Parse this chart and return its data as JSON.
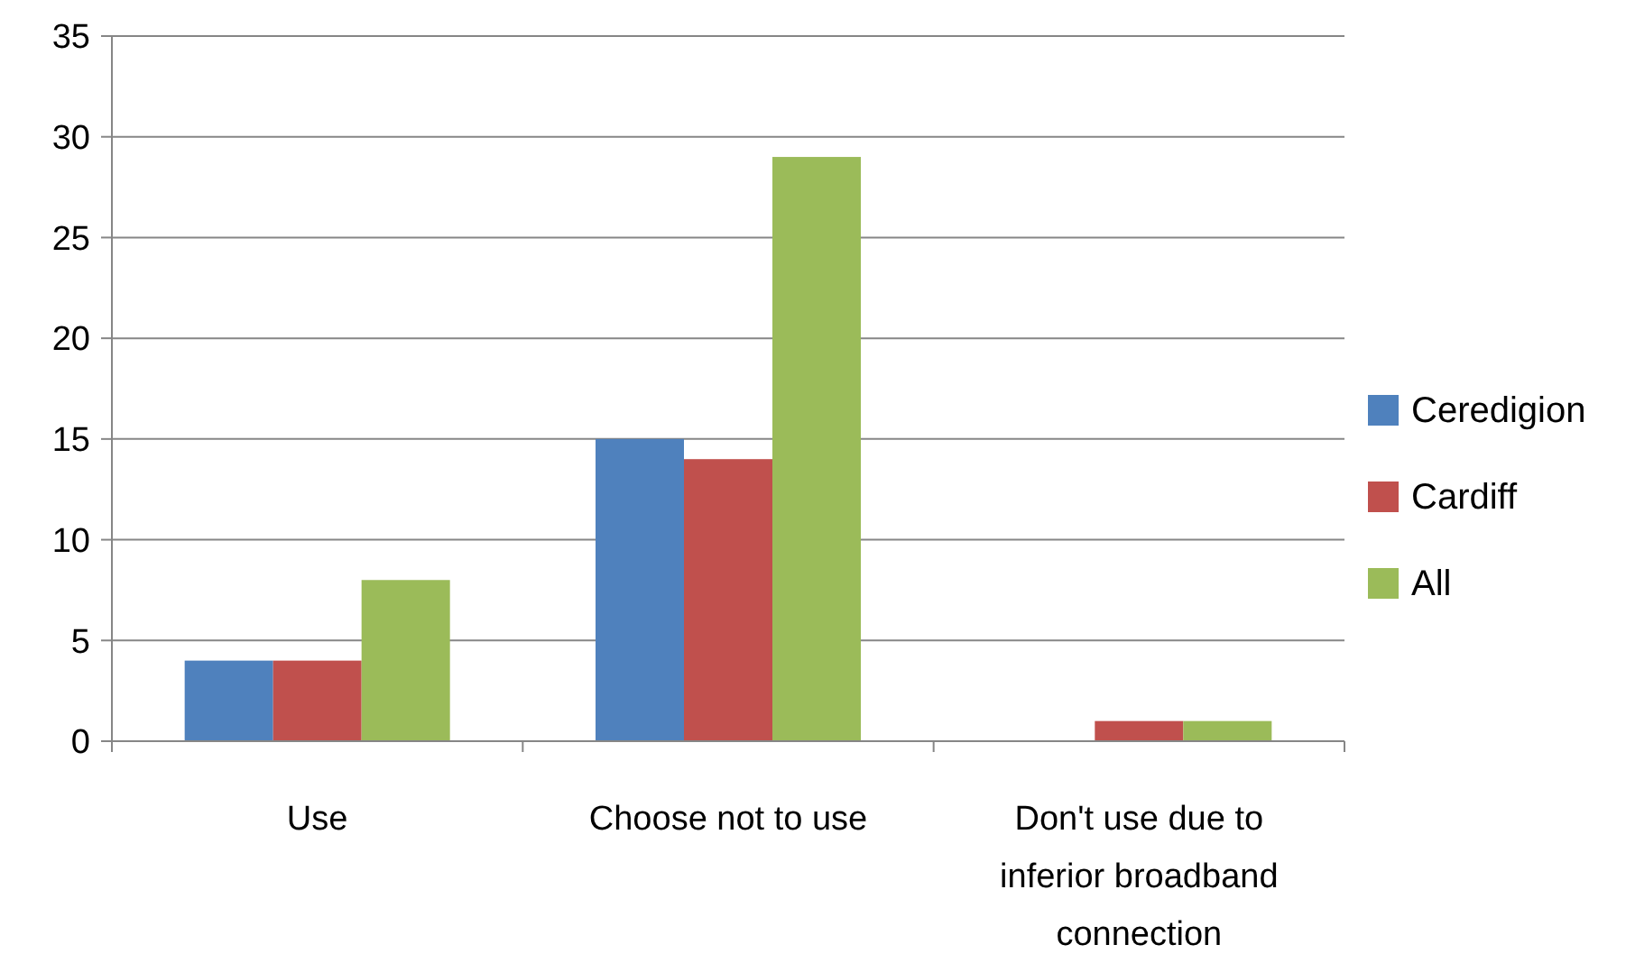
{
  "chart_data": {
    "type": "bar",
    "categories": [
      "Use",
      "Choose not to use",
      "Don't use due to inferior broadband connection"
    ],
    "series": [
      {
        "name": "Ceredigion",
        "color": "#4f81bd",
        "values": [
          4,
          15,
          0
        ]
      },
      {
        "name": "Cardiff",
        "color": "#c0504d",
        "values": [
          4,
          14,
          1
        ]
      },
      {
        "name": "All",
        "color": "#9bbb59",
        "values": [
          8,
          29,
          1
        ]
      }
    ],
    "ylim": [
      0,
      35
    ],
    "yticks": [
      0,
      5,
      10,
      15,
      20,
      25,
      30,
      35
    ],
    "grid": "y",
    "legend": "right"
  }
}
